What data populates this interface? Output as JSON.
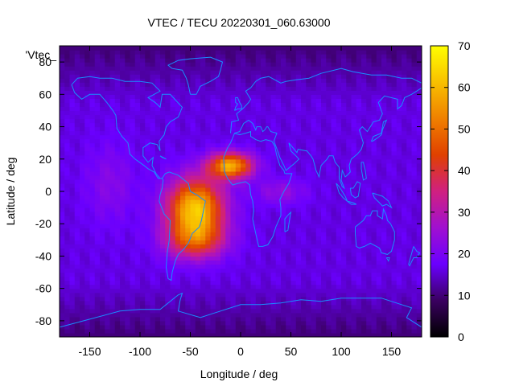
{
  "chart_data": {
    "type": "heatmap",
    "title": "VTEC / TECU 20220301_060.63000",
    "xlabel": "Longitude / deg",
    "ylabel": "Latitude / deg",
    "xlim": [
      -180,
      180
    ],
    "ylim": [
      -90,
      90
    ],
    "x_ticks": [
      -150,
      -100,
      -50,
      0,
      50,
      100,
      150
    ],
    "y_ticks": [
      -80,
      -60,
      -40,
      -20,
      0,
      20,
      40,
      60,
      80
    ],
    "colorbar": {
      "range": [
        0,
        70
      ],
      "ticks": [
        0,
        10,
        20,
        30,
        40,
        50,
        60,
        70
      ],
      "palette": [
        "#000000",
        "#3a0060",
        "#6a00ff",
        "#a010d0",
        "#d02080",
        "#e04000",
        "#f08000",
        "#f8c000",
        "#ffff00"
      ]
    },
    "key_label": "'Vtec_",
    "coastline_color": "#1a8cff",
    "background_level": 16,
    "features": [
      {
        "name": "equatorial-anomaly-south-america",
        "lon": -45,
        "lat": -10,
        "peak": 62,
        "lon_width": 28,
        "lat_width": 18
      },
      {
        "name": "crest-north-atlantic",
        "lon": -10,
        "lat": 16,
        "peak": 58,
        "lon_width": 22,
        "lat_width": 8
      },
      {
        "name": "crest-south-america",
        "lon": -45,
        "lat": -30,
        "peak": 40,
        "lon_width": 30,
        "lat_width": 12
      },
      {
        "name": "eastern-pacific-shoulder",
        "lon": -130,
        "lat": 5,
        "peak": 22,
        "lon_width": 25,
        "lat_width": 25
      },
      {
        "name": "africa-extension",
        "lon": 40,
        "lat": 0,
        "peak": 24,
        "lon_width": 25,
        "lat_width": 8
      },
      {
        "name": "tongue-indian-ocean",
        "lon": 65,
        "lat": 0,
        "peak": 16,
        "lon_width": 12,
        "lat_width": 4
      }
    ]
  }
}
